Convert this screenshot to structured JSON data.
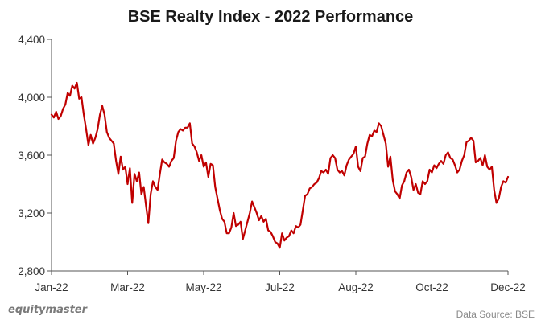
{
  "header": {
    "title": "BSE Realty Index - 2022 Performance"
  },
  "footer": {
    "brand": "equitymaster",
    "source": "Data Source: BSE"
  },
  "colors": {
    "line": "#c00000",
    "axis": "#555555",
    "background": "#ffffff"
  },
  "chart_data": {
    "type": "line",
    "title": "BSE Realty Index - 2022 Performance",
    "xlabel": "",
    "ylabel": "",
    "ylim": [
      2800,
      4400
    ],
    "yticks": [
      "2,800",
      "3,200",
      "3,600",
      "4,000",
      "4,400"
    ],
    "xticks": [
      "Jan-22",
      "Mar-22",
      "May-22",
      "Jul-22",
      "Aug-22",
      "Oct-22",
      "Dec-22"
    ],
    "grid": false,
    "series": [
      {
        "values": [
          3880,
          3860,
          3900,
          3850,
          3870,
          3920,
          3950,
          4030,
          4010,
          4080,
          4060,
          4100,
          3990,
          4000,
          3880,
          3780,
          3670,
          3740,
          3680,
          3720,
          3780,
          3880,
          3940,
          3880,
          3760,
          3720,
          3700,
          3680,
          3560,
          3470,
          3590,
          3500,
          3520,
          3400,
          3510,
          3270,
          3470,
          3420,
          3480,
          3330,
          3380,
          3250,
          3130,
          3330,
          3420,
          3380,
          3360,
          3470,
          3570,
          3550,
          3540,
          3520,
          3560,
          3580,
          3700,
          3760,
          3780,
          3770,
          3790,
          3790,
          3820,
          3680,
          3660,
          3620,
          3560,
          3600,
          3520,
          3550,
          3450,
          3540,
          3530,
          3380,
          3300,
          3220,
          3160,
          3140,
          3060,
          3060,
          3100,
          3200,
          3110,
          3120,
          3140,
          3020,
          3080,
          3140,
          3200,
          3280,
          3240,
          3200,
          3150,
          3180,
          3140,
          3160,
          3080,
          3070,
          3040,
          3000,
          2990,
          2960,
          3060,
          3010,
          3030,
          3040,
          3080,
          3060,
          3110,
          3100,
          3120,
          3220,
          3320,
          3330,
          3370,
          3380,
          3400,
          3410,
          3440,
          3490,
          3480,
          3500,
          3470,
          3580,
          3600,
          3580,
          3500,
          3480,
          3490,
          3460,
          3530,
          3570,
          3590,
          3610,
          3660,
          3520,
          3490,
          3580,
          3590,
          3680,
          3740,
          3730,
          3770,
          3760,
          3820,
          3800,
          3740,
          3680,
          3520,
          3590,
          3430,
          3350,
          3330,
          3300,
          3390,
          3420,
          3480,
          3500,
          3450,
          3360,
          3400,
          3340,
          3330,
          3420,
          3400,
          3420,
          3500,
          3480,
          3530,
          3510,
          3540,
          3560,
          3540,
          3600,
          3620,
          3580,
          3570,
          3530,
          3480,
          3500,
          3560,
          3600,
          3690,
          3700,
          3720,
          3700,
          3550,
          3560,
          3580,
          3530,
          3600,
          3520,
          3500,
          3520,
          3360,
          3270,
          3300,
          3380,
          3420,
          3410,
          3450
        ]
      }
    ]
  }
}
